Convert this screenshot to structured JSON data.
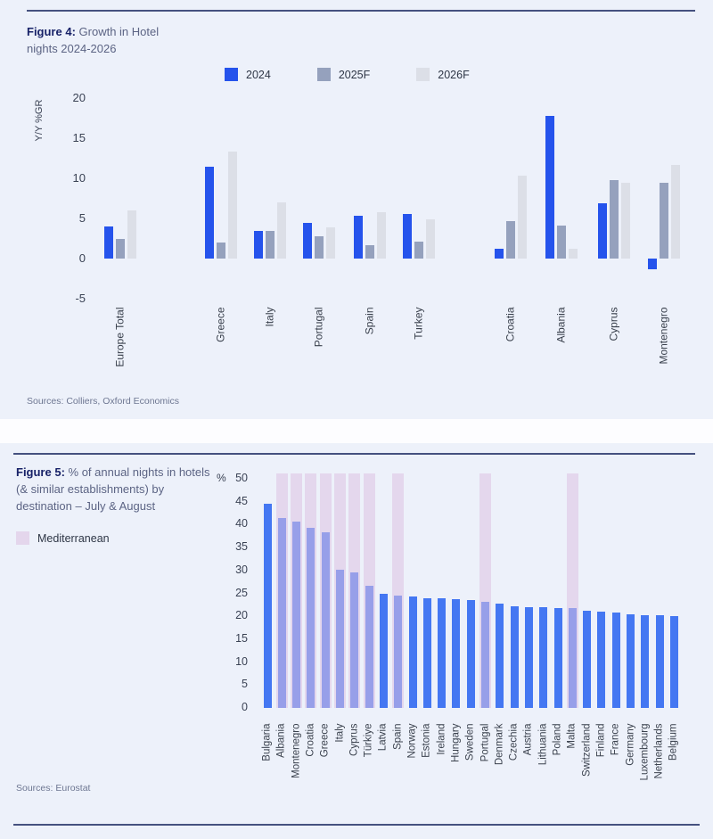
{
  "figure4": {
    "title_bold": "Figure 4:",
    "title_rest": " Growth in Hotel nights 2024-2026",
    "sources": "Sources: Colliers, Oxford Economics"
  },
  "figure5": {
    "title_bold": "Figure 5:",
    "title_rest": " % of annual nights in hotels (& similar establishments) by destination – July & August",
    "legend_label": "Mediterranean",
    "legend_color": "#e4d6ec",
    "sources": "Sources: Eurostat"
  },
  "chart_data": [
    {
      "id": "fig4",
      "type": "bar",
      "title": "Figure 4: Growth in Hotel nights 2024-2026",
      "ylabel": "Y/Y %GR",
      "ylim": [
        -5,
        20
      ],
      "yticks": [
        20,
        15,
        10,
        5,
        0,
        -5
      ],
      "grid": false,
      "legend_position": "top",
      "categories": [
        "Europe Total",
        "Greece",
        "Italy",
        "Portugal",
        "Spain",
        "Turkey",
        "Croatia",
        "Albania",
        "Cyprus",
        "Montenegro"
      ],
      "series": [
        {
          "name": "2024",
          "color": "#2553ec",
          "values": [
            4.0,
            11.4,
            3.4,
            4.5,
            5.3,
            5.6,
            1.2,
            17.8,
            6.9,
            -1.3
          ]
        },
        {
          "name": "2025F",
          "color": "#95a1bd",
          "values": [
            2.5,
            2.0,
            3.4,
            2.8,
            1.7,
            2.1,
            4.7,
            4.1,
            9.8,
            9.5
          ]
        },
        {
          "name": "2026F",
          "color": "#dcdfe7",
          "values": [
            6.0,
            13.3,
            7.0,
            3.9,
            5.8,
            4.9,
            10.3,
            1.2,
            9.5,
            11.7
          ]
        }
      ]
    },
    {
      "id": "fig5",
      "type": "bar",
      "title": "Figure 5: % of annual nights in hotels (& similar establishments) by destination – July & August",
      "ylabel": "%",
      "ylim": [
        0,
        50
      ],
      "yticks": [
        50,
        45,
        40,
        35,
        30,
        25,
        20,
        15,
        10,
        5,
        0
      ],
      "grid": false,
      "bar_color": "#4477f2",
      "highlight_legend": "Mediterranean",
      "categories": [
        "Bulgaria",
        "Albania",
        "Montenegro",
        "Croatia",
        "Greece",
        "Italy",
        "Cyprus",
        "Türkiye",
        "Latvia",
        "Spain",
        "Norway",
        "Estonia",
        "Ireland",
        "Hungary",
        "Sweden",
        "Portugal",
        "Denmark",
        "Czechia",
        "Austria",
        "Lithuania",
        "Poland",
        "Malta",
        "Switzerland",
        "Finland",
        "France",
        "Germany",
        "Luxembourg",
        "Netherlands",
        "Belgium"
      ],
      "values": [
        44.5,
        41.4,
        40.6,
        39.3,
        38.4,
        30.2,
        29.6,
        26.6,
        25.0,
        24.6,
        24.4,
        24.0,
        23.9,
        23.8,
        23.6,
        23.1,
        22.8,
        22.2,
        21.9,
        21.9,
        21.8,
        21.8,
        21.3,
        21.1,
        20.8,
        20.4,
        20.3,
        20.2,
        20.0
      ],
      "mediterranean": [
        false,
        true,
        true,
        true,
        true,
        true,
        true,
        true,
        false,
        true,
        false,
        false,
        false,
        false,
        false,
        true,
        false,
        false,
        false,
        false,
        false,
        true,
        false,
        false,
        false,
        false,
        false,
        false,
        false
      ]
    }
  ]
}
